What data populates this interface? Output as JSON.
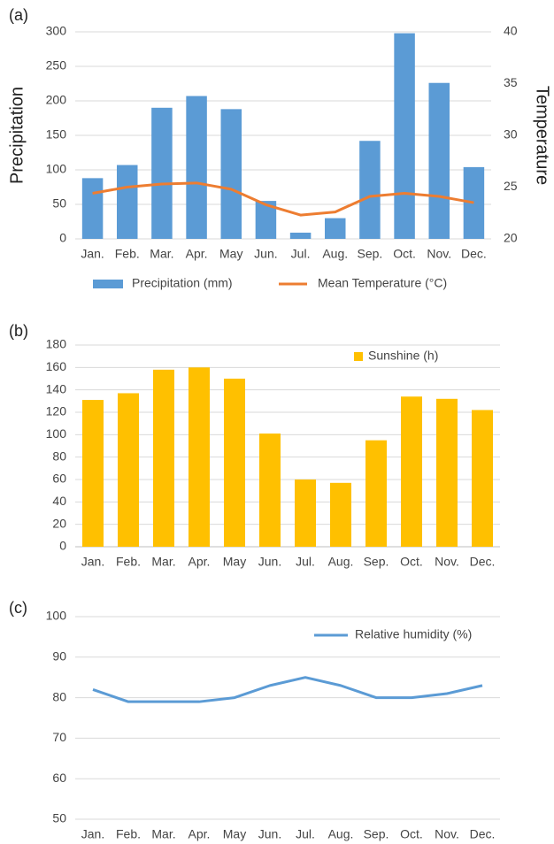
{
  "chart_data": [
    {
      "type": "combo",
      "label": "(a)",
      "y_label": "Precipitation",
      "y2_label": "Temperature",
      "categories": [
        "Jan.",
        "Feb.",
        "Mar.",
        "Apr.",
        "May",
        "Jun.",
        "Jul.",
        "Aug.",
        "Sep.",
        "Oct.",
        "Nov.",
        "Dec."
      ],
      "series": [
        {
          "name": "Precipitation (mm)",
          "type": "bar",
          "color": "#5b9bd5",
          "values": [
            88,
            107,
            190,
            207,
            188,
            55,
            9,
            30,
            142,
            298,
            226,
            104
          ]
        },
        {
          "name": "Mean Temperature (°C)",
          "type": "line",
          "axis": "y2",
          "color": "#ed7d31",
          "values": [
            24.4,
            25.0,
            25.3,
            25.4,
            24.8,
            23.3,
            22.3,
            22.6,
            24.1,
            24.4,
            24.1,
            23.5
          ]
        }
      ],
      "ylim": [
        0,
        300
      ],
      "yticks": [
        0,
        50,
        100,
        150,
        200,
        250,
        300
      ],
      "y2lim": [
        20,
        40
      ],
      "y2ticks": [
        20,
        25,
        30,
        35,
        40
      ],
      "grid": true,
      "legend": "bottom"
    },
    {
      "type": "bar",
      "label": "(b)",
      "categories": [
        "Jan.",
        "Feb.",
        "Mar.",
        "Apr.",
        "May",
        "Jun.",
        "Jul.",
        "Aug.",
        "Sep.",
        "Oct.",
        "Nov.",
        "Dec."
      ],
      "series": [
        {
          "name": "Sunshine (h)",
          "color": "#ffc000",
          "values": [
            131,
            137,
            158,
            160,
            150,
            101,
            60,
            57,
            95,
            134,
            132,
            122
          ]
        }
      ],
      "ylim": [
        0,
        180
      ],
      "yticks": [
        0,
        20,
        40,
        60,
        80,
        100,
        120,
        140,
        160,
        180
      ],
      "grid": true,
      "legend": "top-right"
    },
    {
      "type": "line",
      "label": "(c)",
      "categories": [
        "Jan.",
        "Feb.",
        "Mar.",
        "Apr.",
        "May",
        "Jun.",
        "Jul.",
        "Aug.",
        "Sep.",
        "Oct.",
        "Nov.",
        "Dec."
      ],
      "series": [
        {
          "name": "Relative humidity (%)",
          "color": "#5b9bd5",
          "values": [
            82,
            79,
            79,
            79,
            80,
            83,
            85,
            83,
            80,
            80,
            81,
            83
          ]
        }
      ],
      "ylim": [
        50,
        100
      ],
      "yticks": [
        50,
        60,
        70,
        80,
        90,
        100
      ],
      "grid": true,
      "legend": "top-right"
    }
  ]
}
